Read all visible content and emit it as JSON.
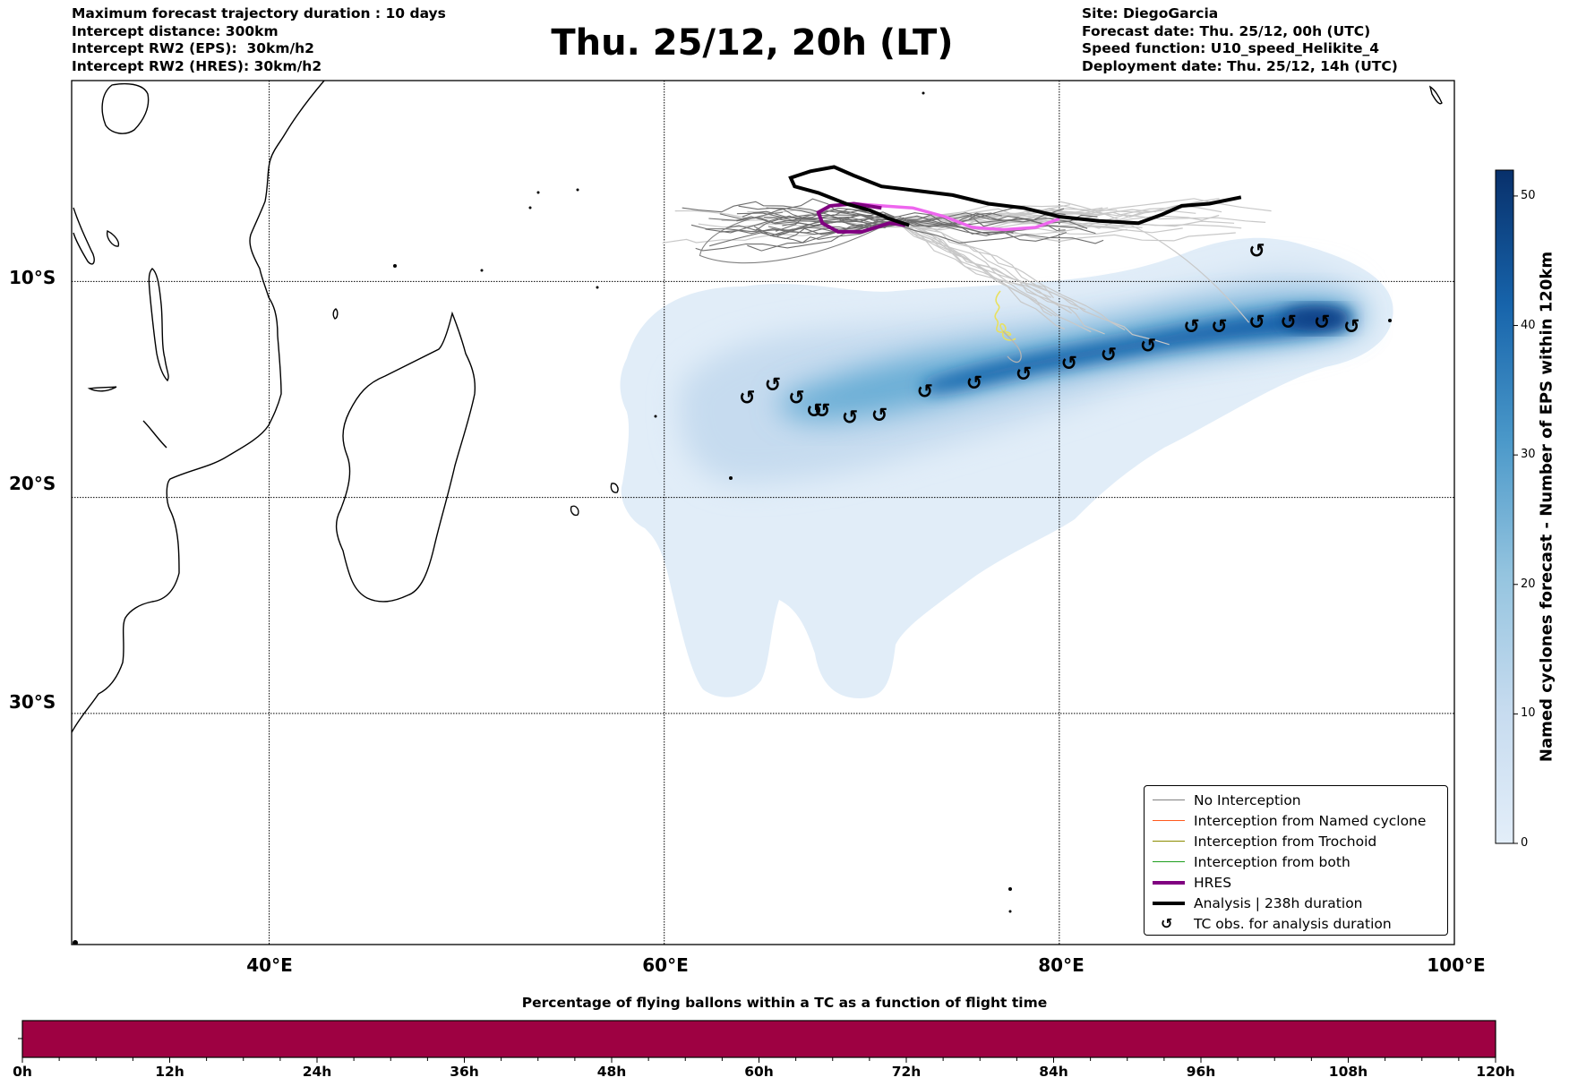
{
  "header": {
    "left_lines": [
      "Maximum forecast trajectory duration : 10 days",
      "Intercept distance: 300km",
      "Intercept RW2 (EPS):  30km/h2",
      "Intercept RW2 (HRES): 30km/h2"
    ],
    "title": "Thu. 25/12, 20h (LT)",
    "right_lines": [
      "Site: DiegoGarcia",
      "Forecast date: Thu. 25/12, 00h (UTC)",
      "Speed function: U10_speed_Helikite_4",
      "Deployment date: Thu. 25/12, 14h (UTC)"
    ]
  },
  "map": {
    "lon_range": [
      30,
      100
    ],
    "lat_range": [
      -0.7,
      -40.7
    ],
    "lon_ticks": [
      {
        "value": 40,
        "label": "40°E"
      },
      {
        "value": 60,
        "label": "60°E"
      },
      {
        "value": 80,
        "label": "80°E"
      },
      {
        "value": 100,
        "label": "100°E"
      }
    ],
    "lat_ticks": [
      {
        "value": -10,
        "label": "10°S"
      },
      {
        "value": -20,
        "label": "20°S"
      },
      {
        "value": -30,
        "label": "30°S"
      }
    ],
    "colors": {
      "no_interception": "#808080",
      "named_cyclone": "#ff5a1e",
      "trochoid": "#8b8b00",
      "both": "#1e9e1e",
      "hres": "#800080",
      "hres_extension": "#ee66ee",
      "analysis": "#000000",
      "light_traj": "#c8c8c8",
      "yellow_traj": "#e8e060"
    },
    "tc_obs": [
      [
        64.2,
        -15.4
      ],
      [
        65.5,
        -14.8
      ],
      [
        66.7,
        -15.4
      ],
      [
        67.6,
        -16.0
      ],
      [
        68.0,
        -16.0
      ],
      [
        69.4,
        -16.3
      ],
      [
        70.9,
        -16.2
      ],
      [
        73.2,
        -15.1
      ],
      [
        75.7,
        -14.7
      ],
      [
        78.2,
        -14.3
      ],
      [
        80.5,
        -13.8
      ],
      [
        82.5,
        -13.4
      ],
      [
        84.5,
        -13.0
      ],
      [
        86.7,
        -12.1
      ],
      [
        88.1,
        -12.1
      ],
      [
        90.0,
        -11.9
      ],
      [
        91.6,
        -11.9
      ],
      [
        93.3,
        -11.9
      ],
      [
        94.8,
        -12.1
      ],
      [
        90.0,
        -8.6
      ]
    ],
    "analysis_track": [
      [
        72.4,
        -7.4
      ],
      [
        71.4,
        -7.1
      ],
      [
        70.4,
        -6.7
      ],
      [
        69.2,
        -6.4
      ],
      [
        67.8,
        -5.9
      ],
      [
        66.6,
        -5.6
      ],
      [
        66.4,
        -5.2
      ],
      [
        67.4,
        -4.9
      ],
      [
        68.6,
        -4.7
      ],
      [
        69.6,
        -5.1
      ],
      [
        71.0,
        -5.6
      ],
      [
        72.8,
        -5.8
      ],
      [
        74.6,
        -6.0
      ],
      [
        76.4,
        -6.4
      ],
      [
        78.2,
        -6.6
      ],
      [
        80.0,
        -7.0
      ],
      [
        82.0,
        -7.2
      ],
      [
        84.0,
        -7.3
      ],
      [
        85.2,
        -6.9
      ],
      [
        86.2,
        -6.5
      ],
      [
        87.6,
        -6.4
      ],
      [
        89.2,
        -6.1
      ]
    ],
    "hres_track": [
      [
        72.2,
        -7.4
      ],
      [
        71.4,
        -7.3
      ],
      [
        70.0,
        -7.7
      ],
      [
        68.8,
        -7.7
      ],
      [
        68.0,
        -7.3
      ],
      [
        67.8,
        -6.8
      ],
      [
        68.4,
        -6.5
      ],
      [
        69.6,
        -6.4
      ],
      [
        71.0,
        -6.6
      ]
    ],
    "hres_ext_track": [
      [
        68.4,
        -6.5
      ],
      [
        69.6,
        -6.4
      ],
      [
        71.0,
        -6.5
      ],
      [
        72.6,
        -6.6
      ],
      [
        74.2,
        -7.0
      ],
      [
        75.6,
        -7.5
      ],
      [
        77.2,
        -7.6
      ],
      [
        78.8,
        -7.5
      ],
      [
        80.0,
        -7.1
      ]
    ]
  },
  "legend": {
    "items": [
      {
        "label": "No Interception",
        "type": "thin",
        "color": "#808080"
      },
      {
        "label": "Interception from Named cyclone",
        "type": "thin",
        "color": "#ff5a1e"
      },
      {
        "label": "Interception from Trochoid",
        "type": "thin",
        "color": "#8b8b00"
      },
      {
        "label": "Interception from both",
        "type": "thin",
        "color": "#1e9e1e"
      },
      {
        "label": "HRES",
        "type": "thick",
        "color": "#800080"
      },
      {
        "label": "Analysis | 238h duration",
        "type": "thick",
        "color": "#000000"
      },
      {
        "label": "TC obs. for analysis duration",
        "type": "symbol",
        "symbol": "↺"
      }
    ]
  },
  "colorbar": {
    "title": "Named cyclones forecast - Number of EPS within 120km",
    "min": 0,
    "max": 52,
    "ticks": [
      "0",
      "10",
      "20",
      "30",
      "40",
      "50"
    ],
    "tick_values": [
      0,
      10,
      20,
      30,
      40,
      50
    ],
    "color_low": "#e3eef9",
    "color_high": "#08306b"
  },
  "flight_time": {
    "title": "Percentage of flying ballons within a TC as a function of flight time",
    "bar_color": "#9e0142",
    "range_hours": [
      0,
      120
    ],
    "labels": [
      "0h",
      "12h",
      "24h",
      "36h",
      "48h",
      "60h",
      "72h",
      "84h",
      "96h",
      "108h",
      "120h"
    ],
    "label_values": [
      0,
      12,
      24,
      36,
      48,
      60,
      72,
      84,
      96,
      108,
      120
    ],
    "minor_step_hours": 3
  }
}
